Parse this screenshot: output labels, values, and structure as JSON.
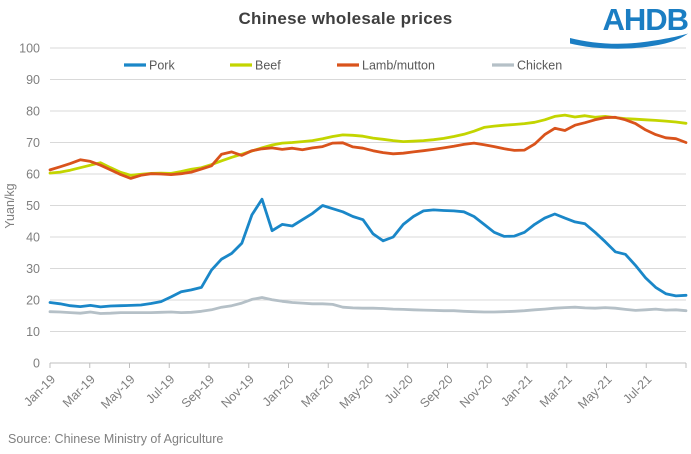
{
  "header": {
    "title": "Chinese wholesale prices",
    "logo_text": "AHDB",
    "logo_color": "#1b7ec3"
  },
  "source": {
    "text": "Source: Chinese Ministry of Agriculture"
  },
  "colors": {
    "title": "#3f3f3f",
    "axis_text": "#7f7f7f",
    "gridline": "#d9d9d9",
    "axis_line": "#bfbfbf",
    "legend_text": "#595959",
    "logo_blue": "#1b7ec3"
  },
  "chart_data": {
    "type": "line",
    "title": "Chinese wholesale prices",
    "xlabel": "",
    "ylabel": "Yuan/kg",
    "ylim": [
      0,
      100
    ],
    "ytick_step": 10,
    "grid": "horizontal",
    "legend_position": "top-inside",
    "x_unit": "two points per month, Jan-2019 to Aug-2021",
    "x_months": [
      "Jan-19",
      "Feb-19",
      "Mar-19",
      "Apr-19",
      "May-19",
      "Jun-19",
      "Jul-19",
      "Aug-19",
      "Sep-19",
      "Oct-19",
      "Nov-19",
      "Dec-19",
      "Jan-20",
      "Feb-20",
      "Mar-20",
      "Apr-20",
      "May-20",
      "Jun-20",
      "Jul-20",
      "Aug-20",
      "Sep-20",
      "Oct-20",
      "Nov-20",
      "Dec-20",
      "Jan-21",
      "Feb-21",
      "Mar-21",
      "Apr-21",
      "May-21",
      "Jun-21",
      "Jul-21",
      "Aug-21"
    ],
    "xtick_labels": [
      "Jan-19",
      "Mar-19",
      "May-19",
      "Jul-19",
      "Sep-19",
      "Nov-19",
      "Jan-20",
      "Mar-20",
      "May-20",
      "Jul-20",
      "Sep-20",
      "Nov-20",
      "Jan-21",
      "Mar-21",
      "May-21",
      "Jul-21"
    ],
    "xtick_every_n_points": 4,
    "series": [
      {
        "name": "Pork",
        "color": "#1a87c8",
        "values": [
          19.2,
          18.8,
          18.2,
          17.9,
          18.3,
          17.8,
          18.1,
          18.2,
          18.3,
          18.4,
          18.9,
          19.5,
          21.0,
          22.6,
          23.2,
          24.0,
          29.5,
          33.0,
          34.8,
          38.0,
          47.0,
          52.0,
          42.0,
          44.0,
          43.5,
          45.5,
          47.5,
          50.0,
          49.0,
          48.0,
          46.5,
          45.5,
          41.0,
          38.8,
          40.0,
          44.0,
          46.5,
          48.3,
          48.6,
          48.4,
          48.3,
          48.0,
          46.5,
          44.0,
          41.5,
          40.2,
          40.3,
          41.5,
          44.0,
          46.0,
          47.3,
          46.0,
          44.8,
          44.2,
          41.5,
          38.5,
          35.3,
          34.5,
          31.0,
          27.0,
          24.0,
          22.0,
          21.3,
          21.5
        ]
      },
      {
        "name": "Beef",
        "color": "#c3d500",
        "values": [
          60.3,
          60.6,
          61.2,
          62.0,
          62.8,
          63.6,
          62.0,
          60.5,
          59.6,
          59.9,
          60.2,
          60.3,
          60.2,
          60.8,
          61.5,
          62.0,
          63.0,
          64.2,
          65.3,
          66.3,
          67.3,
          68.3,
          69.2,
          69.8,
          70.0,
          70.3,
          70.6,
          71.2,
          71.9,
          72.4,
          72.3,
          72.0,
          71.4,
          71.0,
          70.6,
          70.3,
          70.4,
          70.6,
          70.9,
          71.3,
          71.9,
          72.6,
          73.6,
          74.8,
          75.2,
          75.5,
          75.7,
          76.0,
          76.4,
          77.2,
          78.3,
          78.7,
          78.1,
          78.5,
          78.0,
          78.3,
          77.9,
          77.6,
          77.4,
          77.2,
          77.0,
          76.8,
          76.5,
          76.1
        ]
      },
      {
        "name": "Lamb/mutton",
        "color": "#d9531c",
        "values": [
          61.3,
          62.3,
          63.3,
          64.5,
          64.0,
          62.8,
          61.3,
          59.8,
          58.6,
          59.6,
          60.1,
          60.0,
          59.8,
          60.1,
          60.6,
          61.6,
          62.6,
          66.3,
          67.0,
          65.9,
          67.4,
          68.0,
          68.3,
          67.8,
          68.2,
          67.7,
          68.3,
          68.7,
          69.8,
          69.9,
          68.6,
          68.2,
          67.4,
          66.8,
          66.4,
          66.6,
          67.0,
          67.4,
          67.8,
          68.3,
          68.8,
          69.4,
          69.8,
          69.3,
          68.7,
          68.0,
          67.5,
          67.6,
          69.5,
          72.5,
          74.5,
          73.8,
          75.5,
          76.3,
          77.2,
          77.9,
          78.0,
          77.2,
          76.0,
          74.0,
          72.5,
          71.5,
          71.2,
          70.0
        ]
      },
      {
        "name": "Chicken",
        "color": "#b5c0c7",
        "values": [
          16.3,
          16.2,
          16.0,
          15.8,
          16.2,
          15.7,
          15.8,
          16.0,
          16.0,
          16.0,
          16.0,
          16.1,
          16.2,
          16.0,
          16.1,
          16.4,
          16.9,
          17.7,
          18.2,
          19.0,
          20.2,
          20.8,
          20.1,
          19.6,
          19.2,
          19.0,
          18.8,
          18.8,
          18.6,
          17.7,
          17.5,
          17.4,
          17.4,
          17.3,
          17.1,
          17.0,
          16.9,
          16.8,
          16.7,
          16.6,
          16.6,
          16.4,
          16.3,
          16.2,
          16.2,
          16.3,
          16.4,
          16.6,
          16.9,
          17.1,
          17.4,
          17.6,
          17.7,
          17.5,
          17.4,
          17.6,
          17.4,
          17.0,
          16.7,
          16.9,
          17.1,
          16.8,
          16.9,
          16.6
        ]
      }
    ]
  }
}
